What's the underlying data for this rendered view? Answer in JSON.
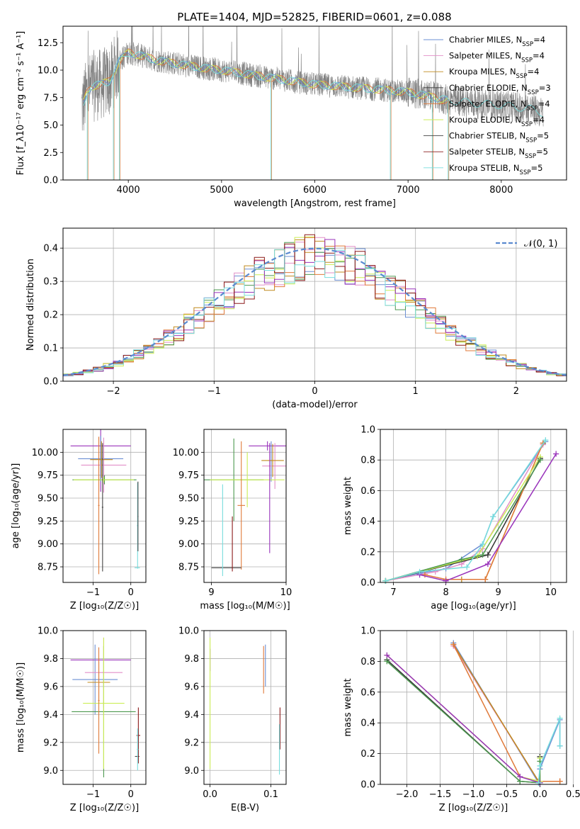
{
  "colors": {
    "chabrier_miles": "#6b8fd4",
    "salpeter_miles": "#e28fc8",
    "kroupa_miles": "#c08a1e",
    "chabrier_elodie": "#333333",
    "salpeter_elodie": "#e07a3a",
    "kroupa_elodie": "#ccee55",
    "chabrier_stelib": "#444444",
    "salpeter_stelib": "#8b1a1a",
    "kroupa_stelib": "#77dddd",
    "data": "#808080",
    "extra_green": "#4d9950",
    "extra_purple": "#9933bb"
  },
  "chart_data": [
    {
      "id": "spectrum",
      "type": "line",
      "title": "PLATE=1404, MJD=52825, FIBERID=0601, z=0.088",
      "xlabel": "wavelength [Angstrom, rest frame]",
      "ylabel": "Flux [f_λ10⁻¹⁷ erg cm⁻² s⁻¹ A⁻¹]",
      "xlim": [
        3300,
        8700
      ],
      "ylim": [
        0,
        14
      ],
      "xticks": [
        "4000",
        "5000",
        "6000",
        "7000",
        "8000"
      ],
      "yticks": [
        "0.0",
        "2.5",
        "5.0",
        "7.5",
        "10.0",
        "12.5"
      ],
      "legend_placement": "top-right",
      "legend": [
        {
          "label": "Chabrier MILES, N",
          "sub": "SSP",
          "suffix": "=4",
          "color_key": "chabrier_miles"
        },
        {
          "label": "Salpeter MILES, N",
          "sub": "SSP",
          "suffix": "=4",
          "color_key": "salpeter_miles"
        },
        {
          "label": "Kroupa MILES, N",
          "sub": "SSP",
          "suffix": "=4",
          "color_key": "kroupa_miles"
        },
        {
          "label": "Chabrier ELODIE, N",
          "sub": "SSP",
          "suffix": "=3",
          "color_key": "chabrier_elodie"
        },
        {
          "label": "Salpeter ELODIE, N",
          "sub": "SSP",
          "suffix": "=4",
          "color_key": "salpeter_elodie"
        },
        {
          "label": "Kroupa ELODIE, N",
          "sub": "SSP",
          "suffix": "=4",
          "color_key": "kroupa_elodie"
        },
        {
          "label": "Chabrier STELIB, N",
          "sub": "SSP",
          "suffix": "=5",
          "color_key": "chabrier_stelib"
        },
        {
          "label": "Salpeter STELIB, N",
          "sub": "SSP",
          "suffix": "=5",
          "color_key": "salpeter_stelib"
        },
        {
          "label": "Kroupa STELIB, N",
          "sub": "SSP",
          "suffix": "=5",
          "color_key": "kroupa_stelib"
        }
      ],
      "continuum": {
        "x": [
          3500,
          3550,
          3600,
          3700,
          3800,
          3900,
          4000,
          4100,
          4300,
          4500,
          4800,
          5000,
          5300,
          5600,
          6000,
          6300,
          6600,
          7000,
          7400,
          7700,
          8000,
          8300,
          8450
        ],
        "y": [
          6.5,
          7.8,
          8.5,
          8.7,
          9.0,
          10.8,
          11.6,
          11.4,
          10.9,
          10.6,
          10.2,
          10.0,
          9.6,
          9.2,
          8.7,
          8.5,
          8.3,
          8.0,
          7.3,
          7.0,
          6.8,
          6.5,
          6.1
        ]
      }
    },
    {
      "id": "residuals",
      "type": "bar",
      "xlabel": "(data-model)/error",
      "ylabel": "Normed distribution",
      "xlim": [
        -2.5,
        2.5
      ],
      "ylim": [
        0,
        0.46
      ],
      "xticks": [
        "−2",
        "−1",
        "0",
        "1",
        "2"
      ],
      "yticks": [
        "0.0",
        "0.1",
        "0.2",
        "0.3",
        "0.4"
      ],
      "bin_width": 0.1,
      "legend": "𝒩(0, 1)",
      "legend_placement": "top-right"
    },
    {
      "id": "age_vs_Z",
      "type": "scatter",
      "xlabel": "Z [log₁₀(Z/Z☉)]",
      "ylabel": "age  [log₁₀(age/yr)]",
      "xlim": [
        -1.8,
        0.4
      ],
      "ylim": [
        8.58,
        10.25
      ],
      "xticks": [
        {
          "v": -1,
          "t": "−1"
        },
        {
          "v": 0,
          "t": "0"
        }
      ],
      "yticks": [
        {
          "v": 8.75,
          "t": "8.75"
        },
        {
          "v": 9.0,
          "t": "9.00"
        },
        {
          "v": 9.25,
          "t": "9.25"
        },
        {
          "v": 9.5,
          "t": "9.50"
        },
        {
          "v": 9.75,
          "t": "9.75"
        },
        {
          "v": 10.0,
          "t": "10.00"
        }
      ],
      "crosses": [
        {
          "x": -0.8,
          "y": 10.07,
          "xe": 0.8,
          "ye": 0.5,
          "c": "extra_purple"
        },
        {
          "x": -0.8,
          "y": 9.93,
          "xe": 0.6,
          "ye": 0.25,
          "c": "chabrier_miles"
        },
        {
          "x": -0.72,
          "y": 9.86,
          "xe": 0.6,
          "ye": 0.3,
          "c": "salpeter_miles"
        },
        {
          "x": -0.78,
          "y": 9.92,
          "xe": 0.3,
          "ye": 0.2,
          "c": "kroupa_miles"
        },
        {
          "x": -0.7,
          "y": 9.7,
          "xe": 0.85,
          "ye": 0.05,
          "c": "extra_green"
        },
        {
          "x": -0.72,
          "y": 9.7,
          "xe": 0.8,
          "ye": 0.03,
          "c": "kroupa_elodie"
        },
        {
          "x": -0.85,
          "y": 9.42,
          "xe": 0.02,
          "ye": 0.75,
          "c": "salpeter_elodie"
        },
        {
          "x": -0.75,
          "y": 9.4,
          "xe": 0.02,
          "ye": 0.7,
          "c": "chabrier_stelib"
        },
        {
          "x": 0.17,
          "y": 8.74,
          "xe": 0.07,
          "ye": 0.0,
          "c": "kroupa_stelib"
        },
        {
          "x": 0.18,
          "y": 9.2,
          "xe": 0.02,
          "ye": 0.47,
          "c": "kroupa_stelib"
        },
        {
          "x": 0.19,
          "y": 9.3,
          "xe": 0.01,
          "ye": 0.38,
          "c": "chabrier_stelib"
        }
      ]
    },
    {
      "id": "age_vs_mass",
      "type": "scatter",
      "xlabel": "mass [log₁₀(M/M☉)]",
      "ylabel": "",
      "xlim": [
        8.9,
        10.0
      ],
      "ylim": [
        8.58,
        10.25
      ],
      "xticks": [
        {
          "v": 9,
          "t": "9"
        },
        {
          "v": 10,
          "t": "10"
        }
      ],
      "yticks": [
        {
          "v": 8.75,
          "t": "8.75"
        },
        {
          "v": 9.0,
          "t": "9.00"
        },
        {
          "v": 9.25,
          "t": "9.25"
        },
        {
          "v": 9.5,
          "t": "9.50"
        },
        {
          "v": 9.75,
          "t": "9.75"
        },
        {
          "v": 10.0,
          "t": "10.00"
        }
      ],
      "crosses": [
        {
          "x": 9.75,
          "y": 10.07,
          "xe": 0.25,
          "ye": 0.05,
          "c": "extra_purple"
        },
        {
          "x": 9.8,
          "y": 9.9,
          "xe": 0.0,
          "ye": 0.22,
          "c": "chabrier_miles"
        },
        {
          "x": 9.85,
          "y": 9.85,
          "xe": 0.17,
          "ye": 0.25,
          "c": "salpeter_miles"
        },
        {
          "x": 9.82,
          "y": 9.91,
          "xe": 0.15,
          "ye": 0.18,
          "c": "kroupa_miles"
        },
        {
          "x": 9.3,
          "y": 9.7,
          "xe": 0.4,
          "ye": 0.45,
          "c": "extra_green"
        },
        {
          "x": 9.48,
          "y": 9.7,
          "xe": 0.5,
          "ye": 0.3,
          "c": "kroupa_elodie"
        },
        {
          "x": 9.4,
          "y": 9.42,
          "xe": 0.05,
          "ye": 0.7,
          "c": "salpeter_elodie"
        },
        {
          "x": 9.2,
          "y": 8.74,
          "xe": 0.2,
          "ye": 0.0,
          "c": "chabrier_stelib"
        },
        {
          "x": 9.28,
          "y": 9.0,
          "xe": 0.0,
          "ye": 0.3,
          "c": "salpeter_stelib"
        },
        {
          "x": 9.15,
          "y": 9.15,
          "xe": 0.0,
          "ye": 0.5,
          "c": "kroupa_stelib"
        },
        {
          "x": 9.78,
          "y": 9.5,
          "xe": 0.0,
          "ye": 0.6,
          "c": "extra_purple"
        }
      ]
    },
    {
      "id": "mw_vs_age",
      "type": "line",
      "xlabel": "age  [log₁₀(age/yr)]",
      "ylabel": "mass weight",
      "xlim": [
        6.75,
        10.3
      ],
      "ylim": [
        0,
        1.0
      ],
      "xticks": [
        {
          "v": 7,
          "t": "7"
        },
        {
          "v": 8,
          "t": "8"
        },
        {
          "v": 9,
          "t": "9"
        },
        {
          "v": 10,
          "t": "10"
        }
      ],
      "yticks": [
        {
          "v": 0,
          "t": "0.0"
        },
        {
          "v": 0.2,
          "t": "0.2"
        },
        {
          "v": 0.4,
          "t": "0.4"
        },
        {
          "v": 0.6,
          "t": "0.6"
        },
        {
          "v": 0.8,
          "t": "0.8"
        },
        {
          "v": 1.0,
          "t": "1.0"
        }
      ],
      "series": [
        {
          "c": "chabrier_miles",
          "x": [
            6.85,
            7.5,
            8.0,
            8.7,
            8.9,
            9.9
          ],
          "y": [
            0.01,
            0.06,
            0.09,
            0.25,
            0.43,
            0.92
          ]
        },
        {
          "c": "salpeter_miles",
          "x": [
            6.85,
            7.8,
            8.3,
            8.7,
            9.85
          ],
          "y": [
            0.01,
            0.07,
            0.12,
            0.22,
            0.9
          ]
        },
        {
          "c": "kroupa_miles",
          "x": [
            8.3,
            8.75,
            9.85
          ],
          "y": [
            0.02,
            0.02,
            0.91
          ]
        },
        {
          "c": "chabrier_elodie",
          "x": [
            6.85,
            8.8,
            9.8
          ],
          "y": [
            0.01,
            0.18,
            0.81
          ]
        },
        {
          "c": "salpeter_elodie",
          "x": [
            7.6,
            8.0,
            8.75,
            9.85
          ],
          "y": [
            0.05,
            0.02,
            0.02,
            0.91
          ]
        },
        {
          "c": "kroupa_elodie",
          "x": [
            6.85,
            8.6,
            9.8
          ],
          "y": [
            0.01,
            0.17,
            0.82
          ]
        },
        {
          "c": "extra_green",
          "x": [
            6.85,
            8.3,
            8.7,
            9.8
          ],
          "y": [
            0.01,
            0.15,
            0.18,
            0.8
          ]
        },
        {
          "c": "extra_purple",
          "x": [
            7.5,
            8.0,
            8.8,
            10.1
          ],
          "y": [
            0.05,
            0.01,
            0.12,
            0.84
          ]
        },
        {
          "c": "kroupa_stelib",
          "x": [
            6.85,
            7.5,
            8.4,
            8.7,
            8.9,
            9.9
          ],
          "y": [
            0.01,
            0.07,
            0.1,
            0.25,
            0.43,
            0.93
          ]
        }
      ]
    },
    {
      "id": "mass_vs_Z",
      "type": "scatter",
      "xlabel": "Z [log₁₀(Z/Z☉)]",
      "ylabel": "mass [log₁₀(M/M☉)]",
      "xlim": [
        -1.8,
        0.4
      ],
      "ylim": [
        8.9,
        10.0
      ],
      "xticks": [
        {
          "v": -1,
          "t": "−1"
        },
        {
          "v": 0,
          "t": "0"
        }
      ],
      "yticks": [
        {
          "v": 9.0,
          "t": "9.0"
        },
        {
          "v": 9.2,
          "t": "9.2"
        },
        {
          "v": 9.4,
          "t": "9.4"
        },
        {
          "v": 9.6,
          "t": "9.6"
        },
        {
          "v": 9.8,
          "t": "9.8"
        },
        {
          "v": 10.0,
          "t": "10.0"
        }
      ],
      "crosses": [
        {
          "x": -0.8,
          "y": 9.79,
          "xe": 0.8,
          "ye": 0.0,
          "c": "extra_purple"
        },
        {
          "x": -0.95,
          "y": 9.65,
          "xe": 0.6,
          "ye": 0.25,
          "c": "chabrier_miles"
        },
        {
          "x": -0.72,
          "y": 9.7,
          "xe": 0.5,
          "ye": 0.25,
          "c": "salpeter_miles"
        },
        {
          "x": -0.85,
          "y": 9.63,
          "xe": 0.3,
          "ye": 0.15,
          "c": "kroupa_miles"
        },
        {
          "x": -0.72,
          "y": 9.42,
          "xe": 0.85,
          "ye": 0.47,
          "c": "extra_green"
        },
        {
          "x": -0.72,
          "y": 9.48,
          "xe": 0.55,
          "ye": 0.47,
          "c": "kroupa_elodie"
        },
        {
          "x": -0.85,
          "y": 9.5,
          "xe": 0.02,
          "ye": 0.38,
          "c": "salpeter_elodie"
        },
        {
          "x": 0.17,
          "y": 9.1,
          "xe": 0.06,
          "ye": 0.0,
          "c": "chabrier_stelib"
        },
        {
          "x": 0.2,
          "y": 9.25,
          "xe": 0.05,
          "ye": 0.2,
          "c": "salpeter_stelib"
        },
        {
          "x": 0.18,
          "y": 9.15,
          "xe": 0.02,
          "ye": 0.15,
          "c": "kroupa_stelib"
        }
      ]
    },
    {
      "id": "mass_vs_ebv",
      "type": "scatter",
      "xlabel": "E(B-V)",
      "ylabel": "",
      "xlim": [
        -0.01,
        0.125
      ],
      "ylim": [
        8.9,
        10.0
      ],
      "xticks": [
        {
          "v": 0.0,
          "t": "0.0"
        },
        {
          "v": 0.1,
          "t": "0.1"
        }
      ],
      "yticks": [
        {
          "v": 9.0,
          "t": "9.0"
        },
        {
          "v": 9.2,
          "t": "9.2"
        },
        {
          "v": 9.4,
          "t": "9.4"
        },
        {
          "v": 9.6,
          "t": "9.6"
        },
        {
          "v": 9.8,
          "t": "9.8"
        },
        {
          "v": 10.0,
          "t": "10.0"
        }
      ],
      "crosses": [
        {
          "x": 0.0,
          "y": 9.79,
          "xe": 0.0,
          "ye": 0.08,
          "c": "extra_purple"
        },
        {
          "x": 0.0,
          "y": 9.48,
          "xe": 0.0,
          "ye": 0.47,
          "c": "kroupa_elodie"
        },
        {
          "x": 0.088,
          "y": 9.72,
          "xe": 0.0,
          "ye": 0.17,
          "c": "salpeter_elodie"
        },
        {
          "x": 0.091,
          "y": 9.75,
          "xe": 0.0,
          "ye": 0.15,
          "c": "chabrier_miles"
        },
        {
          "x": 0.115,
          "y": 9.3,
          "xe": 0.0,
          "ye": 0.15,
          "c": "salpeter_stelib"
        },
        {
          "x": 0.114,
          "y": 9.15,
          "xe": 0.0,
          "ye": 0.18,
          "c": "kroupa_stelib"
        }
      ]
    },
    {
      "id": "mw_vs_Z",
      "type": "line",
      "xlabel": "Z [log₁₀(Z/Z☉)]",
      "ylabel": "mass weight",
      "xlim": [
        -2.4,
        0.4
      ],
      "ylim": [
        0,
        1.0
      ],
      "xticks": [
        {
          "v": -2.0,
          "t": "−2.0"
        },
        {
          "v": -1.5,
          "t": "−1.5"
        },
        {
          "v": -1.0,
          "t": "−1.0"
        },
        {
          "v": -0.5,
          "t": "−0.5"
        },
        {
          "v": 0.0,
          "t": "0.0"
        },
        {
          "v": 0.5,
          "t": "0.5"
        }
      ],
      "yticks": [
        {
          "v": 0,
          "t": "0.0"
        },
        {
          "v": 0.2,
          "t": "0.2"
        },
        {
          "v": 0.4,
          "t": "0.4"
        },
        {
          "v": 0.6,
          "t": "0.6"
        },
        {
          "v": 0.8,
          "t": "0.8"
        },
        {
          "v": 1.0,
          "t": "1.0"
        }
      ],
      "series": [
        {
          "c": "chabrier_miles",
          "x": [
            -1.3,
            -0.02,
            0.0,
            0.3,
            0.3
          ],
          "y": [
            0.92,
            0.01,
            0.1,
            0.42,
            0.25
          ]
        },
        {
          "c": "salpeter_miles",
          "x": [
            -1.3,
            -0.02,
            0.3
          ],
          "y": [
            0.9,
            0.02,
            0.02
          ]
        },
        {
          "c": "kroupa_miles",
          "x": [
            -1.3,
            -0.02,
            0.3
          ],
          "y": [
            0.91,
            0.02,
            0.02
          ]
        },
        {
          "c": "chabrier_elodie",
          "x": [
            -2.3,
            -0.3,
            0.0,
            0.0
          ],
          "y": [
            0.81,
            0.02,
            0.01,
            0.18
          ]
        },
        {
          "c": "salpeter_elodie",
          "x": [
            -1.3,
            -0.3,
            0.0,
            0.3
          ],
          "y": [
            0.91,
            0.05,
            0.02,
            0.02
          ]
        },
        {
          "c": "kroupa_elodie",
          "x": [
            -2.3,
            -0.3,
            0.0,
            0.0
          ],
          "y": [
            0.84,
            0.05,
            0.02,
            0.17
          ]
        },
        {
          "c": "extra_green",
          "x": [
            -2.3,
            -0.3,
            0.0,
            0.0
          ],
          "y": [
            0.8,
            0.02,
            0.01,
            0.15
          ]
        },
        {
          "c": "extra_purple",
          "x": [
            -2.3,
            -0.3,
            0.0
          ],
          "y": [
            0.84,
            0.05,
            0.01
          ]
        },
        {
          "c": "kroupa_stelib",
          "x": [
            -0.02,
            0.0,
            0.3,
            0.3
          ],
          "y": [
            0.01,
            0.12,
            0.43,
            0.25
          ]
        }
      ]
    }
  ]
}
